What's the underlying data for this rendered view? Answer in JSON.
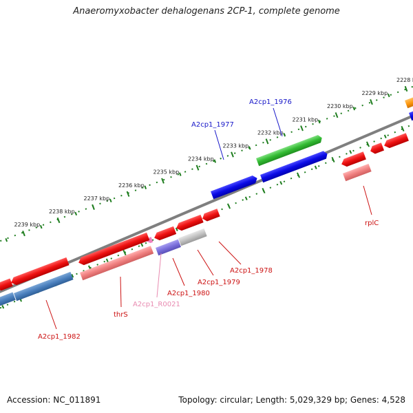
{
  "title": "Anaeromyxobacter dehalogenans 2CP-1, complete genome",
  "footer": {
    "accession": "Accession: NC_011891",
    "summary": "Topology: circular; Length: 5,029,329 bp; Genes: 4,528"
  },
  "ruler": {
    "ticks": [
      {
        "label": "2228 kbp",
        "pos": 2228
      },
      {
        "label": "2229 kbp",
        "pos": 2229
      },
      {
        "label": "2230 kbp",
        "pos": 2230
      },
      {
        "label": "2231 kbp",
        "pos": 2231
      },
      {
        "label": "2232 kbp",
        "pos": 2232
      },
      {
        "label": "2233 kbp",
        "pos": 2233
      },
      {
        "label": "2234 kbp",
        "pos": 2234
      },
      {
        "label": "2235 kbp",
        "pos": 2235
      },
      {
        "label": "2236 kbp",
        "pos": 2236
      },
      {
        "label": "2237 kbp",
        "pos": 2237
      },
      {
        "label": "2238 kbp",
        "pos": 2238
      },
      {
        "label": "2239 kbp",
        "pos": 2239
      }
    ]
  },
  "colors": {
    "forward_cds": "#1010e0",
    "reverse_cds": "#e01010",
    "rna": "#f0a0c0",
    "forward_label": "#1515c8",
    "reverse_label": "#cc1111",
    "rna_label": "#e88ab0",
    "backbone": "#808080",
    "ruler_dots": "#1e7d1e"
  },
  "labels": [
    {
      "text": "A2cp1_1976",
      "strand": "forward"
    },
    {
      "text": "A2cp1_1977",
      "strand": "forward"
    },
    {
      "text": "rplC",
      "strand": "reverse"
    },
    {
      "text": "A2cp1_1978",
      "strand": "reverse"
    },
    {
      "text": "A2cp1_1979",
      "strand": "reverse"
    },
    {
      "text": "A2cp1_1980",
      "strand": "reverse"
    },
    {
      "text": "A2cp1_R0021",
      "strand": "rna"
    },
    {
      "text": "thrS",
      "strand": "reverse"
    },
    {
      "text": "A2cp1_1982",
      "strand": "reverse"
    }
  ]
}
